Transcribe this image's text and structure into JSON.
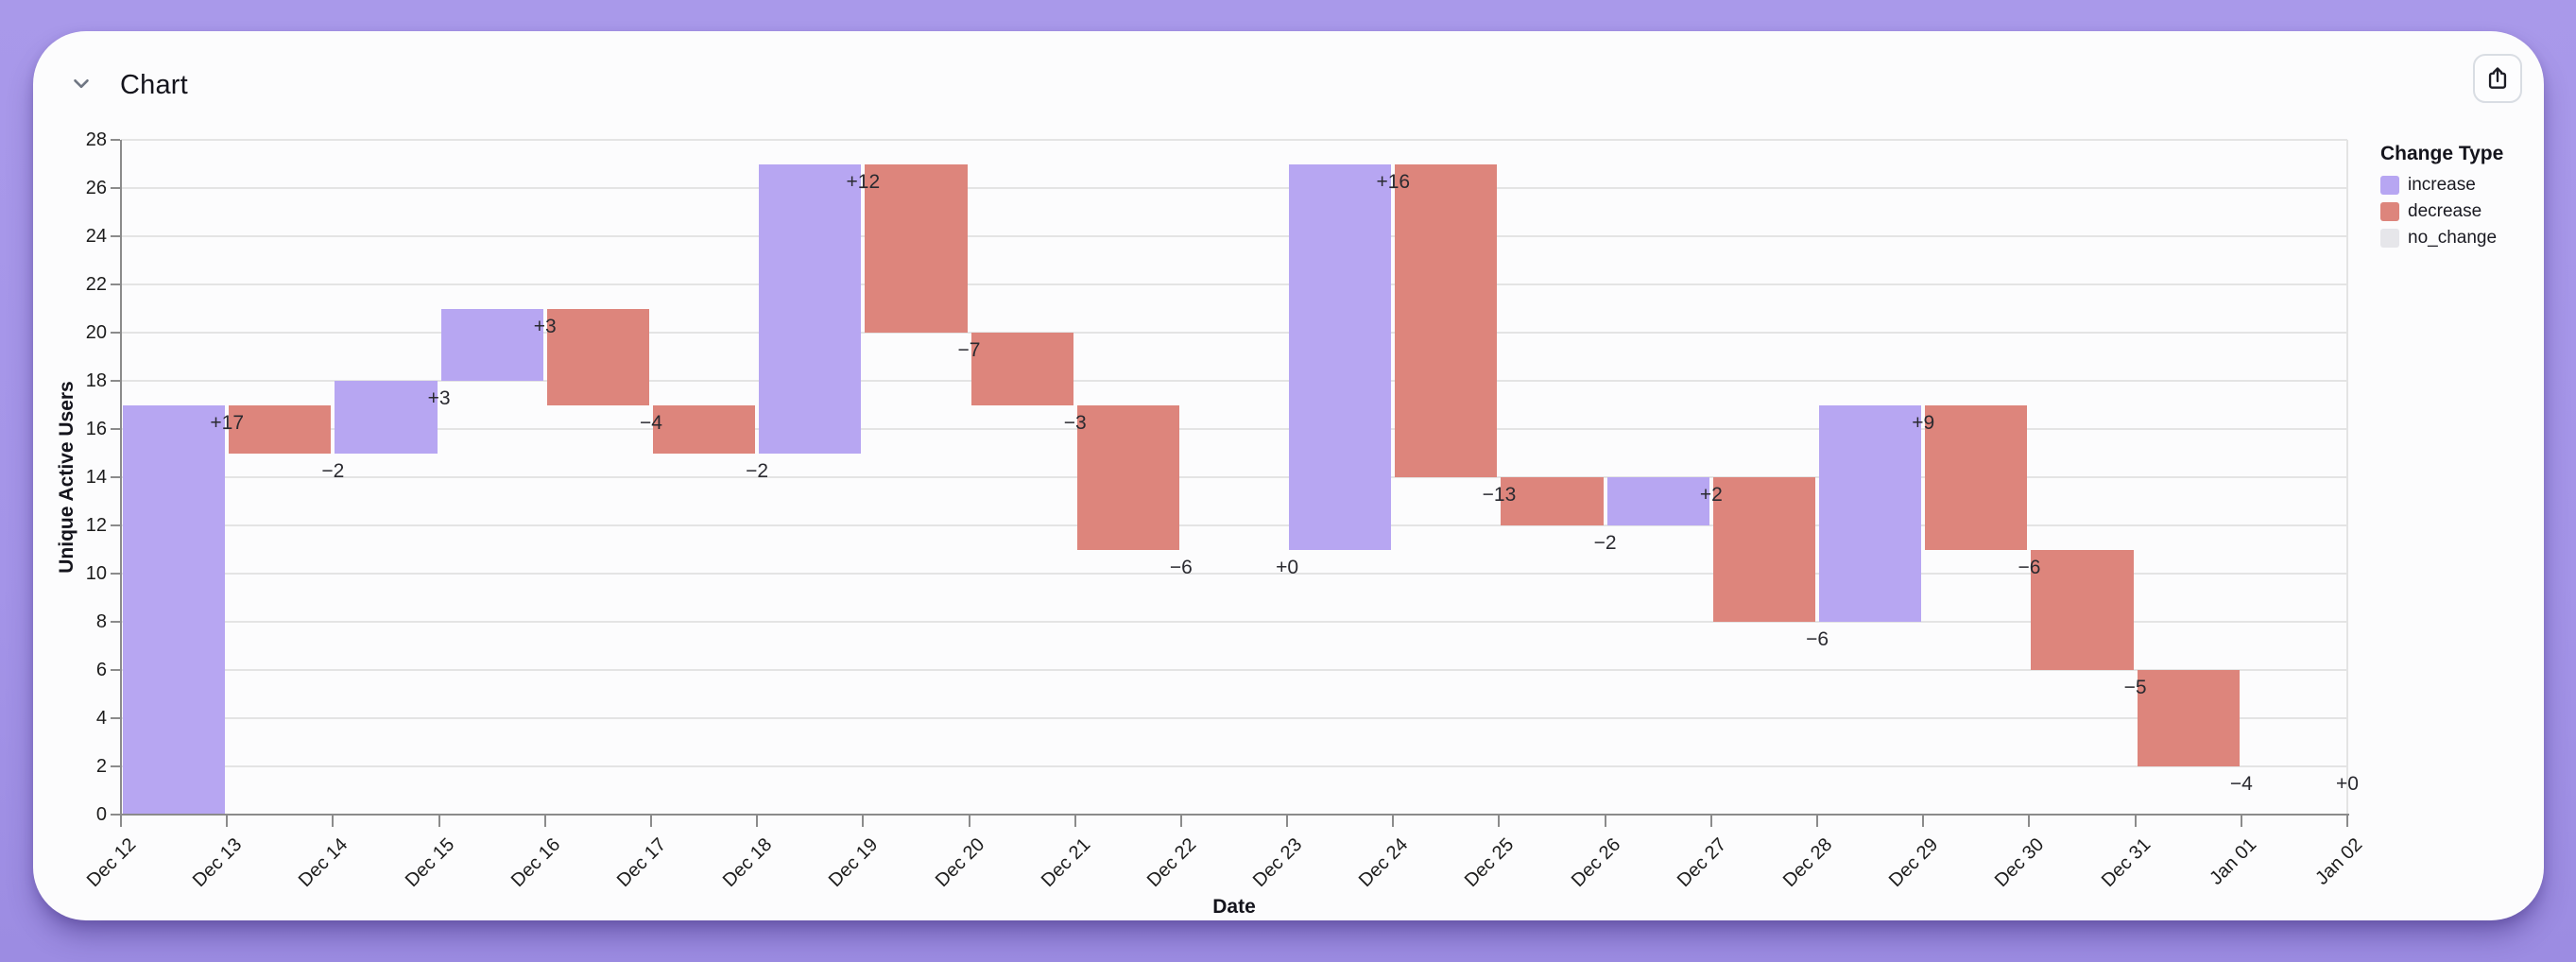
{
  "header": {
    "title": "Chart"
  },
  "legend": {
    "title": "Change Type",
    "items": [
      {
        "label": "increase",
        "color": "#b7a6f2"
      },
      {
        "label": "decrease",
        "color": "#dd857c"
      },
      {
        "label": "no_change",
        "color": "#e6e6ea"
      }
    ]
  },
  "chart_data": {
    "type": "bar",
    "subtype": "waterfall",
    "title": "",
    "xlabel": "Date",
    "ylabel": "Unique Active Users",
    "ylim": [
      0,
      28
    ],
    "ytick_step": 2,
    "grid": "horizontal",
    "legend_position": "right",
    "x_ticks": [
      "Dec 12",
      "Dec 13",
      "Dec 14",
      "Dec 15",
      "Dec 16",
      "Dec 17",
      "Dec 18",
      "Dec 19",
      "Dec 20",
      "Dec 21",
      "Dec 22",
      "Dec 23",
      "Dec 24",
      "Dec 25",
      "Dec 26",
      "Dec 27",
      "Dec 28",
      "Dec 29",
      "Dec 30",
      "Dec 31",
      "Jan 01",
      "Jan 02"
    ],
    "colors": {
      "increase": "#b7a6f2",
      "decrease": "#dd857c",
      "no_change": "#e6e6ea"
    },
    "bars": [
      {
        "date": "Dec 12",
        "label": "+17",
        "change": 17,
        "start": 0,
        "end": 17,
        "type": "increase"
      },
      {
        "date": "Dec 13",
        "label": "−2",
        "change": -2,
        "start": 17,
        "end": 15,
        "type": "decrease"
      },
      {
        "date": "Dec 14",
        "label": "+3",
        "change": 3,
        "start": 15,
        "end": 18,
        "type": "increase"
      },
      {
        "date": "Dec 15",
        "label": "+3",
        "change": 3,
        "start": 18,
        "end": 21,
        "type": "increase"
      },
      {
        "date": "Dec 16",
        "label": "−4",
        "change": -4,
        "start": 21,
        "end": 17,
        "type": "decrease"
      },
      {
        "date": "Dec 17",
        "label": "−2",
        "change": -2,
        "start": 17,
        "end": 15,
        "type": "decrease"
      },
      {
        "date": "Dec 18",
        "label": "+12",
        "change": 12,
        "start": 15,
        "end": 27,
        "type": "increase"
      },
      {
        "date": "Dec 19",
        "label": "−7",
        "change": -7,
        "start": 27,
        "end": 20,
        "type": "decrease"
      },
      {
        "date": "Dec 20",
        "label": "−3",
        "change": -3,
        "start": 20,
        "end": 17,
        "type": "decrease"
      },
      {
        "date": "Dec 21",
        "label": "−6",
        "change": -6,
        "start": 17,
        "end": 11,
        "type": "decrease"
      },
      {
        "date": "Dec 22",
        "label": "+0",
        "change": 0,
        "start": 11,
        "end": 11,
        "type": "no_change"
      },
      {
        "date": "Dec 23",
        "label": "+16",
        "change": 16,
        "start": 11,
        "end": 27,
        "type": "increase"
      },
      {
        "date": "Dec 24",
        "label": "−13",
        "change": -13,
        "start": 27,
        "end": 14,
        "type": "decrease"
      },
      {
        "date": "Dec 25",
        "label": "−2",
        "change": -2,
        "start": 14,
        "end": 12,
        "type": "decrease"
      },
      {
        "date": "Dec 26",
        "label": "+2",
        "change": 2,
        "start": 12,
        "end": 14,
        "type": "increase"
      },
      {
        "date": "Dec 27",
        "label": "−6",
        "change": -6,
        "start": 14,
        "end": 8,
        "type": "decrease"
      },
      {
        "date": "Dec 28",
        "label": "+9",
        "change": 9,
        "start": 8,
        "end": 17,
        "type": "increase"
      },
      {
        "date": "Dec 29",
        "label": "−6",
        "change": -6,
        "start": 17,
        "end": 11,
        "type": "decrease"
      },
      {
        "date": "Dec 30",
        "label": "−5",
        "change": -5,
        "start": 11,
        "end": 6,
        "type": "decrease"
      },
      {
        "date": "Dec 31",
        "label": "−4",
        "change": -4,
        "start": 6,
        "end": 2,
        "type": "decrease"
      },
      {
        "date": "Jan 01",
        "label": "+0",
        "change": 0,
        "start": 2,
        "end": 2,
        "type": "no_change"
      }
    ]
  }
}
